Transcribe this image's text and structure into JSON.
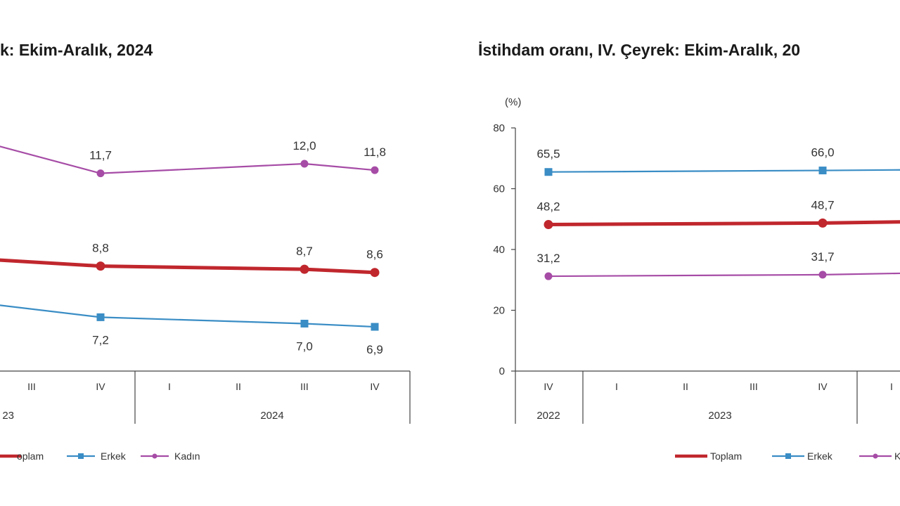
{
  "chart_data": [
    {
      "type": "line",
      "title": "k: Ekim-Aralık, 2024",
      "categories": [
        "III",
        "IV",
        "I",
        "II",
        "III",
        "IV"
      ],
      "years": [
        "23",
        "2024"
      ],
      "series": [
        {
          "name": "Toplam",
          "color": "#c0272d",
          "values": [
            9.0,
            8.8,
            null,
            null,
            8.7,
            8.6
          ]
        },
        {
          "name": "Erkek",
          "color": "#3a8dc5",
          "values": [
            7.6,
            7.2,
            null,
            null,
            7.0,
            6.9
          ]
        },
        {
          "name": "Kadın",
          "color": "#a64ca6",
          "values": [
            12.6,
            11.7,
            null,
            null,
            12.0,
            11.8
          ]
        }
      ],
      "labels": {
        "Toplam": [
          "",
          "8,8",
          "",
          "",
          "8,7",
          "8,6"
        ],
        "Erkek": [
          "",
          "7,2",
          "",
          "",
          "7,0",
          "6,9"
        ],
        "Kadın": [
          "",
          "11,7",
          "",
          "",
          "12,0",
          "11,8"
        ]
      },
      "legend": "bottom",
      "legend_labels": [
        "oplam",
        "Erkek",
        "Kadın"
      ]
    },
    {
      "type": "line",
      "title": "İstihdam oranı, IV. Çeyrek: Ekim-Aralık, 20",
      "unit": "(%)",
      "ylim": [
        0,
        80
      ],
      "yticks": [
        "0",
        "20",
        "40",
        "60",
        "80"
      ],
      "categories": [
        "IV",
        "I",
        "II",
        "III",
        "IV",
        "I"
      ],
      "years": [
        "2022",
        "2023"
      ],
      "series": [
        {
          "name": "Toplam",
          "color": "#c0272d",
          "values": [
            48.2,
            null,
            null,
            null,
            48.7,
            49.1
          ]
        },
        {
          "name": "Erkek",
          "color": "#3a8dc5",
          "values": [
            65.5,
            null,
            null,
            null,
            66.0,
            66.2
          ]
        },
        {
          "name": "Kadın",
          "color": "#a64ca6",
          "values": [
            31.2,
            null,
            null,
            null,
            31.7,
            32.2
          ]
        }
      ],
      "labels": {
        "Toplam": [
          "48,2",
          "",
          "",
          "",
          "48,7",
          ""
        ],
        "Erkek": [
          "65,5",
          "",
          "",
          "",
          "66,0",
          ""
        ],
        "Kadın": [
          "31,2",
          "",
          "",
          "",
          "31,7",
          ""
        ]
      },
      "legend": "bottom-right",
      "legend_labels": [
        "Toplam",
        "Erkek",
        "K"
      ]
    }
  ]
}
